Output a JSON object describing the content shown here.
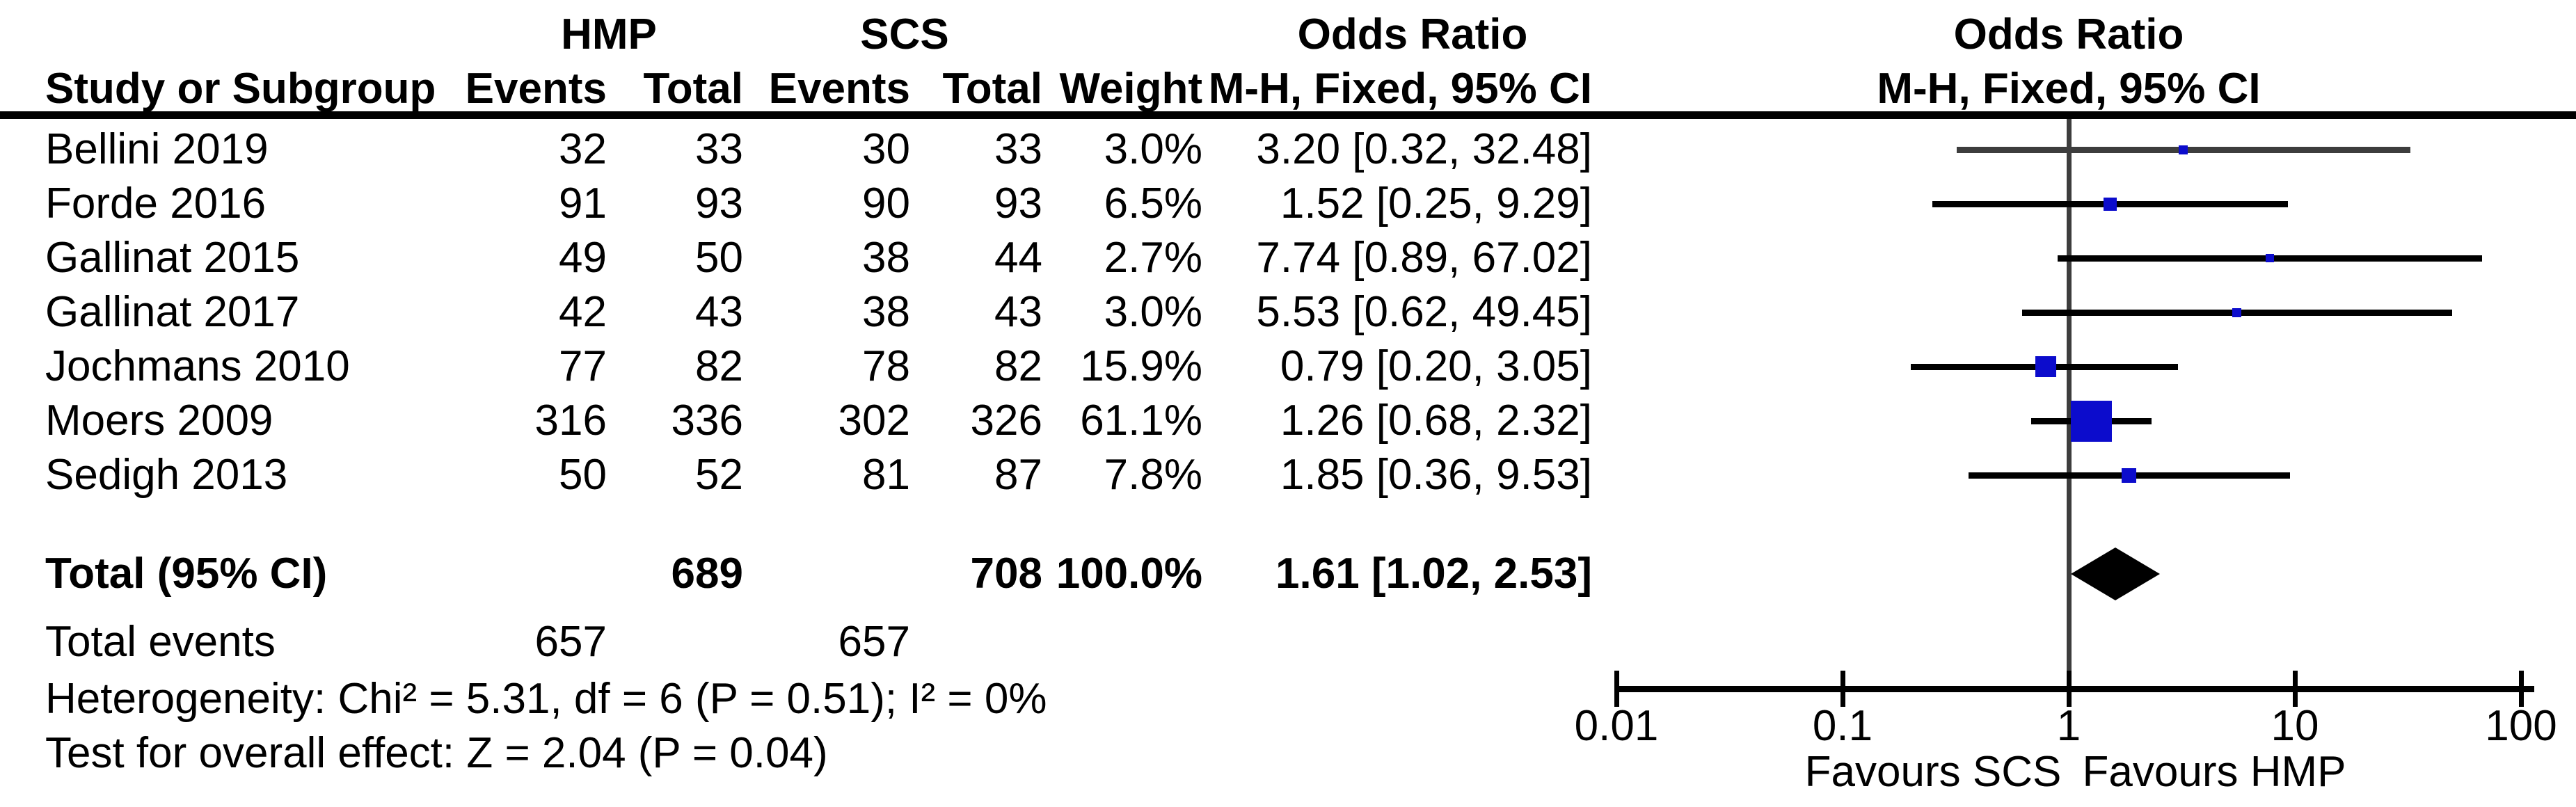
{
  "chart_data": {
    "type": "forest",
    "effect_label": "Odds Ratio",
    "method_label": "M-H, Fixed, 95% CI",
    "group_labels": [
      "HMP",
      "SCS"
    ],
    "column_labels": {
      "study": "Study or Subgroup",
      "events": "Events",
      "total": "Total",
      "weight": "Weight"
    },
    "scale": "log",
    "axis": {
      "ticks": [
        "0.01",
        "0.1",
        "1",
        "10",
        "100"
      ],
      "tick_values": [
        0.01,
        0.1,
        1,
        10,
        100
      ],
      "min": 0.01,
      "max": 100
    },
    "favours_left": "Favours SCS",
    "favours_right": "Favours HMP",
    "marker_color": "#0C0CCC",
    "studies": [
      {
        "name": "Bellini 2019",
        "hmp_events": "32",
        "hmp_total": "33",
        "scs_events": "30",
        "scs_total": "33",
        "weight": "3.0%",
        "or_ci": "3.20 [0.32, 32.48]",
        "or": 3.2,
        "lo": 0.32,
        "hi": 32.48,
        "weight_pct": 3.0,
        "line_color": "#3d3d3d"
      },
      {
        "name": "Forde 2016",
        "hmp_events": "91",
        "hmp_total": "93",
        "scs_events": "90",
        "scs_total": "93",
        "weight": "6.5%",
        "or_ci": "1.52 [0.25, 9.29]",
        "or": 1.52,
        "lo": 0.25,
        "hi": 9.29,
        "weight_pct": 6.5
      },
      {
        "name": "Gallinat 2015",
        "hmp_events": "49",
        "hmp_total": "50",
        "scs_events": "38",
        "scs_total": "44",
        "weight": "2.7%",
        "or_ci": "7.74 [0.89, 67.02]",
        "or": 7.74,
        "lo": 0.89,
        "hi": 67.02,
        "weight_pct": 2.7
      },
      {
        "name": "Gallinat 2017",
        "hmp_events": "42",
        "hmp_total": "43",
        "scs_events": "38",
        "scs_total": "43",
        "weight": "3.0%",
        "or_ci": "5.53 [0.62, 49.45]",
        "or": 5.53,
        "lo": 0.62,
        "hi": 49.45,
        "weight_pct": 3.0
      },
      {
        "name": "Jochmans 2010",
        "hmp_events": "77",
        "hmp_total": "82",
        "scs_events": "78",
        "scs_total": "82",
        "weight": "15.9%",
        "or_ci": "0.79 [0.20, 3.05]",
        "or": 0.79,
        "lo": 0.2,
        "hi": 3.05,
        "weight_pct": 15.9
      },
      {
        "name": "Moers 2009",
        "hmp_events": "316",
        "hmp_total": "336",
        "scs_events": "302",
        "scs_total": "326",
        "weight": "61.1%",
        "or_ci": "1.26 [0.68, 2.32]",
        "or": 1.26,
        "lo": 0.68,
        "hi": 2.32,
        "weight_pct": 61.1
      },
      {
        "name": "Sedigh 2013",
        "hmp_events": "50",
        "hmp_total": "52",
        "scs_events": "81",
        "scs_total": "87",
        "weight": "7.8%",
        "or_ci": "1.85 [0.36, 9.53]",
        "or": 1.85,
        "lo": 0.36,
        "hi": 9.53,
        "weight_pct": 7.8
      }
    ],
    "total": {
      "label": "Total (95% CI)",
      "hmp_total": "689",
      "scs_total": "708",
      "weight": "100.0%",
      "or_ci": "1.61 [1.02, 2.53]",
      "or": 1.61,
      "lo": 1.02,
      "hi": 2.53
    },
    "total_events": {
      "label": "Total events",
      "hmp": "657",
      "scs": "657"
    },
    "heterogeneity": "Heterogeneity: Chi² = 5.31, df = 6 (P = 0.51); I² = 0%",
    "overall_effect": "Test for overall effect: Z = 2.04 (P = 0.04)"
  }
}
